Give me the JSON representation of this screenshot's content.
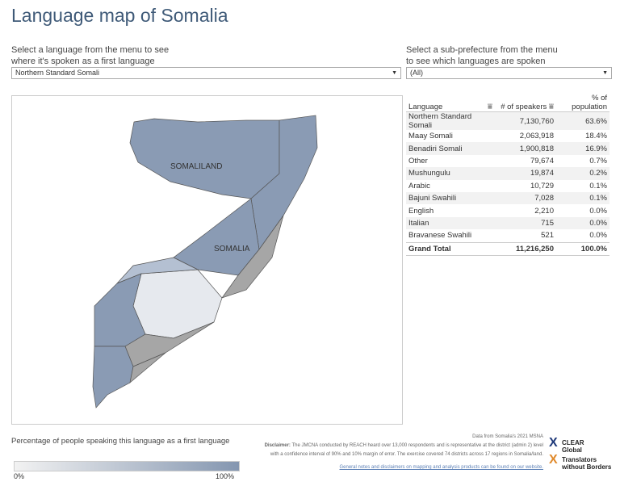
{
  "title": "Language map of Somalia",
  "language_filter": {
    "prompt_line1": "Select a language from the menu to see",
    "prompt_line2": "where it's spoken as a first language",
    "value": "Northern Standard Somali"
  },
  "prefecture_filter": {
    "prompt_line1": "Select a sub-prefecture from the menu",
    "prompt_line2": "to see which languages are spoken",
    "value": "(All)"
  },
  "map": {
    "labels": [
      "SOMALILAND",
      "SOMALIA"
    ],
    "colors": {
      "high": "#8a9bb4",
      "mid": "#b4c0d2",
      "low": "#e6e9ee",
      "nodata": "#a6a6a6"
    }
  },
  "table": {
    "headers": {
      "language": "Language",
      "speakers": "# of speakers",
      "percent": "% of population"
    },
    "rows": [
      {
        "language": "Northern Standard Somali",
        "speakers": "7,130,760",
        "percent": "63.6%"
      },
      {
        "language": "Maay Somali",
        "speakers": "2,063,918",
        "percent": "18.4%"
      },
      {
        "language": "Benadiri Somali",
        "speakers": "1,900,818",
        "percent": "16.9%"
      },
      {
        "language": "Other",
        "speakers": "79,674",
        "percent": "0.7%"
      },
      {
        "language": "Mushungulu",
        "speakers": "19,874",
        "percent": "0.2%"
      },
      {
        "language": "Arabic",
        "speakers": "10,729",
        "percent": "0.1%"
      },
      {
        "language": "Bajuni Swahili",
        "speakers": "7,028",
        "percent": "0.1%"
      },
      {
        "language": "English",
        "speakers": "2,210",
        "percent": "0.0%"
      },
      {
        "language": "Italian",
        "speakers": "715",
        "percent": "0.0%"
      },
      {
        "language": "Bravanese Swahili",
        "speakers": "521",
        "percent": "0.0%"
      }
    ],
    "total": {
      "language": "Grand Total",
      "speakers": "11,216,250",
      "percent": "100.0%"
    }
  },
  "legend": {
    "title": "Percentage of people speaking this language as a first language",
    "min": "0%",
    "max": "100%",
    "color_start": "#f2f2f2",
    "color_end": "#8496b0"
  },
  "footer": {
    "source": "Data from Somalia's 2021 MSNA",
    "disclaimer_label": "Disclaimer:",
    "disclaimer_line1": " The JMCNA conducted by REACH heard over 13,000 respondents and is representative at the district (admin 2) level",
    "disclaimer_line2": "with a confidence interval of 90% and 10% margin of error.  The exercise covered 74 districts across 17 regions in Somalia/land.",
    "link": "General notes and disclaimers on mapping and analysis products can be found on our website."
  },
  "logos": {
    "clear_global_line1": "CLEAR",
    "clear_global_line2": "Global",
    "twb_line1": "Translators",
    "twb_line2": "without Borders"
  }
}
